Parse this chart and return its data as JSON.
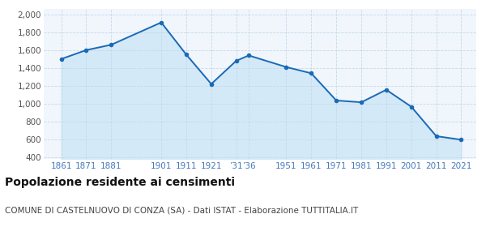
{
  "years": [
    1861,
    1871,
    1881,
    1901,
    1911,
    1921,
    1931,
    1936,
    1951,
    1961,
    1971,
    1981,
    1991,
    2001,
    2011,
    2021
  ],
  "population": [
    1500,
    1600,
    1660,
    1910,
    1550,
    1220,
    1480,
    1540,
    1410,
    1340,
    1035,
    1015,
    1155,
    965,
    635,
    595
  ],
  "line_color": "#1a6ab5",
  "fill_color": "#d4e9f7",
  "marker_color": "#1a6ab5",
  "bg_color": "#f0f6fc",
  "grid_color": "#c5d9ea",
  "title": "Popolazione residente ai censimenti",
  "subtitle": "COMUNE DI CASTELNUOVO DI CONZA (SA) - Dati ISTAT - Elaborazione TUTTITALIA.IT",
  "ylabel_ticks": [
    400,
    600,
    800,
    1000,
    1200,
    1400,
    1600,
    1800,
    2000
  ],
  "ylim": [
    380,
    2060
  ],
  "xlim": [
    1854,
    2027
  ],
  "title_fontsize": 10,
  "subtitle_fontsize": 7.5,
  "tick_label_color": "#4477bb",
  "xtick_positions": [
    1861,
    1871,
    1881,
    1901,
    1911,
    1921,
    1931,
    1936,
    1951,
    1961,
    1971,
    1981,
    1991,
    2001,
    2011,
    2021
  ],
  "xtick_labels": [
    "1861",
    "1871",
    "1881",
    "1901",
    "1911",
    "1921",
    "’31",
    "’36",
    "1951",
    "1961",
    "1971",
    "1981",
    "1991",
    "2001",
    "2011",
    "2021"
  ]
}
